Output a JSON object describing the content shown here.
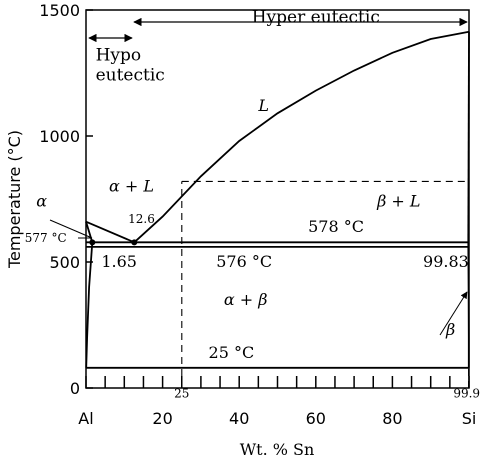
{
  "chart_data": {
    "type": "line",
    "title": "",
    "xlabel": "Wt. % Sn",
    "ylabel": "Temperature (°C)",
    "xlim": [
      0,
      100
    ],
    "ylim": [
      0,
      1500
    ],
    "x_ticks": [
      {
        "value": 0,
        "label": "Al"
      },
      {
        "value": 20,
        "label": "20"
      },
      {
        "value": 40,
        "label": "40"
      },
      {
        "value": 60,
        "label": "60"
      },
      {
        "value": 80,
        "label": "80"
      },
      {
        "value": 100,
        "label": "Si"
      }
    ],
    "x_minor_ticks": [
      5,
      10,
      15,
      25,
      30,
      35,
      45,
      50,
      55,
      65,
      70,
      75,
      85,
      90,
      95
    ],
    "y_ticks": [
      {
        "value": 0,
        "label": "0"
      },
      {
        "value": 500,
        "label": "500"
      },
      {
        "value": 1000,
        "label": "1000"
      },
      {
        "value": 1500,
        "label": "1500"
      }
    ],
    "series": [
      {
        "values": [
          [
            0,
            660
          ],
          [
            12.6,
            578
          ]
        ]
      },
      {
        "values": [
          [
            12.6,
            578
          ],
          [
            20,
            680
          ],
          [
            30,
            840
          ],
          [
            40,
            980
          ],
          [
            50,
            1090
          ],
          [
            60,
            1180
          ],
          [
            70,
            1260
          ],
          [
            80,
            1330
          ],
          [
            90,
            1385
          ],
          [
            100,
            1414
          ]
        ]
      },
      {
        "values": [
          [
            0,
            660
          ],
          [
            1.65,
            578
          ]
        ]
      },
      {
        "values": [
          [
            1.65,
            578
          ],
          [
            0.8,
            400
          ],
          [
            0.3,
            200
          ],
          [
            0.05,
            80
          ]
        ]
      },
      {
        "values": [
          [
            99.83,
            578
          ],
          [
            99.9,
            400
          ],
          [
            99.95,
            200
          ],
          [
            99.95,
            80
          ]
        ]
      },
      {
        "values": [
          [
            99.83,
            578
          ],
          [
            100,
            1414
          ]
        ]
      },
      {
        "values": [
          [
            0,
            578
          ],
          [
            100,
            578
          ]
        ]
      },
      {
        "values": [
          [
            0,
            560
          ],
          [
            100,
            560
          ]
        ]
      },
      {
        "values": [
          [
            0,
            80
          ],
          [
            100,
            80
          ]
        ]
      },
      {
        "values": [
          [
            25,
            820
          ],
          [
            100,
            820
          ]
        ],
        "style": "dashed"
      },
      {
        "values": [
          [
            25,
            0
          ],
          [
            25,
            820
          ]
        ],
        "style": "dashed"
      },
      {
        "values": [
          [
            99.9,
            0
          ],
          [
            99.9,
            80
          ]
        ],
        "style": "dashed"
      }
    ],
    "points": [
      {
        "x": 12.6,
        "y": 578
      },
      {
        "x": 1.65,
        "y": 578
      }
    ],
    "annotations": [
      {
        "text": "Hyper eutectic",
        "x": 60,
        "y": 1450
      },
      {
        "text": "Hypo",
        "x": 2.5,
        "y": 1300
      },
      {
        "text": "eutectic",
        "x": 2.5,
        "y": 1220
      },
      {
        "text": "L",
        "x": 45,
        "y": 1100,
        "italic": true
      },
      {
        "text": "α + L",
        "x": 6,
        "y": 780,
        "italic": true
      },
      {
        "text": "β + L",
        "x": 76,
        "y": 720,
        "italic": true
      },
      {
        "text": "578 °C",
        "x": 58,
        "y": 620
      },
      {
        "text": "576 °C",
        "x": 34,
        "y": 480
      },
      {
        "text": "99.83",
        "x": 88,
        "y": 480
      },
      {
        "text": "12.6",
        "x": 11,
        "y": 655
      },
      {
        "text": "1.65",
        "x": 4,
        "y": 480
      },
      {
        "text": "α",
        "x": -13,
        "y": 720,
        "italic": true
      },
      {
        "text": "577 °C",
        "x": -16,
        "y": 580
      },
      {
        "text": "α + β",
        "x": 36,
        "y": 330,
        "italic": true
      },
      {
        "text": "β",
        "x": 94,
        "y": 210,
        "italic": true
      },
      {
        "text": "25 °C",
        "x": 32,
        "y": 120
      },
      {
        "text": "25",
        "x": 25,
        "y": -38
      },
      {
        "text": "99.9",
        "x": 99.4,
        "y": -38
      }
    ]
  }
}
